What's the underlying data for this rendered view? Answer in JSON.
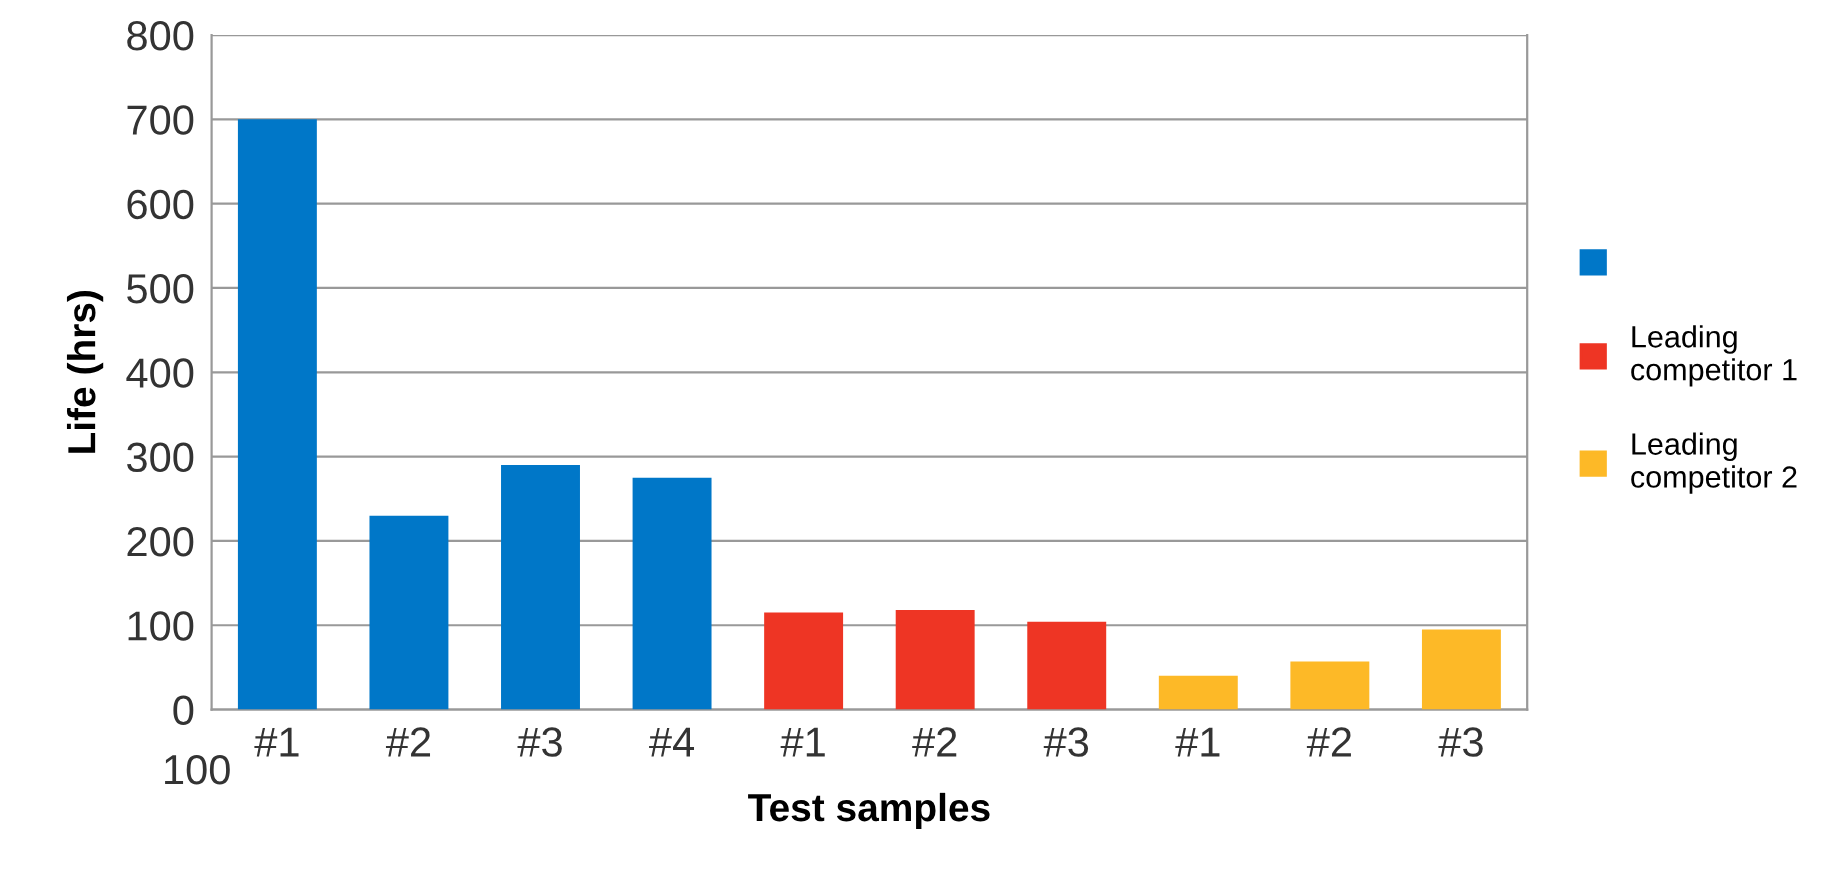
{
  "chart_data": {
    "type": "bar",
    "xlabel": "Test samples",
    "ylabel": "Life (hrs)",
    "categories": [
      "#1",
      "#2",
      "#3",
      "#4",
      "#1",
      "#2",
      "#3",
      "#1",
      "#2",
      "#3"
    ],
    "series": [
      {
        "color": "#0077c8",
        "values": [
          700,
          230,
          290,
          275,
          null,
          null,
          null,
          null,
          null,
          null
        ]
      },
      {
        "name": "Leading competitor 1",
        "color": "#ee3524",
        "values": [
          null,
          null,
          null,
          null,
          115,
          118,
          104,
          null,
          null,
          null
        ]
      },
      {
        "name": "Leading competitor 2",
        "color": "#fdb927",
        "values": [
          null,
          null,
          null,
          null,
          null,
          null,
          null,
          40,
          57,
          95
        ]
      }
    ],
    "ylim": [
      0,
      800
    ],
    "yticks": [
      0,
      100,
      200,
      300,
      400,
      500,
      600,
      700,
      800
    ],
    "grid": "y",
    "legend": "right",
    "annotations": [
      "100"
    ]
  }
}
